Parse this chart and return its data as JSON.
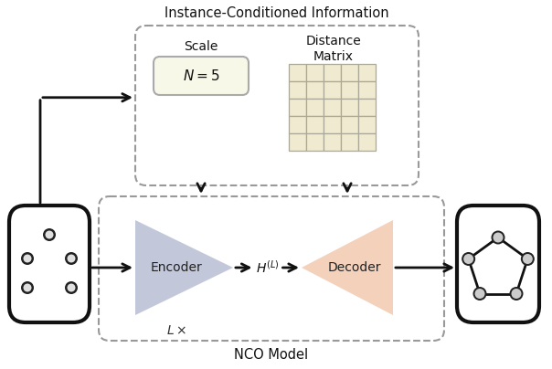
{
  "title_top": "Instance-Conditioned Information",
  "title_bottom": "NCO Model",
  "scale_label": "Scale",
  "distance_label": "Distance\nMatrix",
  "n_equals": "$N = 5$",
  "encoder_label": "Encoder",
  "decoder_label": "Decoder",
  "h_label": "$H^{(L)}$",
  "lx_label": "$L\\times$",
  "bg_color": "#ffffff",
  "matrix_cell_color": "#f0ead0",
  "matrix_grid_color": "#aaa898",
  "encoder_color": "#b8bfd4",
  "decoder_color": "#f2c9b0",
  "arrow_color": "#111111",
  "box_edge_color": "#999999",
  "dice_edge_color": "#111111",
  "node_fill": "#cccccc",
  "node_edge": "#111111"
}
